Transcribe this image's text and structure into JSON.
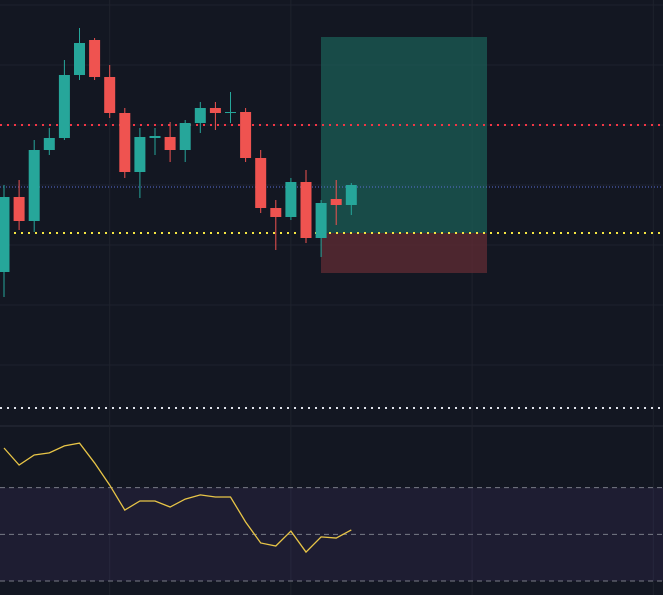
{
  "chart_data": [
    {
      "type": "candlestick",
      "ylim": [
        0,
        425
      ],
      "grid_lines": [
        420,
        360,
        300,
        240,
        180,
        120,
        60
      ],
      "up_color": "#26a69a",
      "down_color": "#ef5350",
      "open": [
        153,
        228,
        204,
        275,
        287,
        350,
        385,
        348,
        312,
        253,
        287,
        288,
        275,
        302,
        317,
        312,
        313,
        267,
        217,
        208,
        243,
        187,
        226,
        220
      ],
      "high": [
        240,
        245,
        285,
        297,
        365,
        397,
        387,
        360,
        317,
        297,
        297,
        303,
        305,
        323,
        323,
        333,
        317,
        275,
        225,
        247,
        255,
        225,
        245,
        242
      ],
      "low": [
        128,
        195,
        193,
        270,
        285,
        345,
        345,
        307,
        247,
        227,
        270,
        263,
        263,
        292,
        295,
        302,
        263,
        212,
        175,
        205,
        182,
        168,
        200,
        210
      ],
      "close": [
        228,
        204,
        275,
        287,
        350,
        382,
        348,
        312,
        253,
        288,
        289,
        275,
        302,
        317,
        312,
        313,
        267,
        217,
        208,
        243,
        187,
        222,
        220,
        240
      ],
      "levels": [
        {
          "value": 300,
          "color": "#f23645"
        },
        {
          "value": 238,
          "color": "#5b6fd6"
        },
        {
          "value": 192,
          "color": "#f5e642"
        },
        {
          "value": 17,
          "color": "#e0e3eb"
        }
      ],
      "position": {
        "target": 388,
        "entry": 192,
        "stop": 152,
        "profit_color": "#1b5e55",
        "loss_color": "#5c2a33"
      }
    },
    {
      "type": "line",
      "ylim": [
        24,
        96
      ],
      "color": "#e8c547",
      "values": [
        87,
        79.7,
        84,
        84.9,
        87.9,
        89.1,
        80.6,
        71.1,
        60.4,
        64.3,
        64.3,
        61.7,
        65.1,
        66.9,
        66,
        66,
        55.3,
        46.3,
        45,
        51.4,
        42.4,
        48.9,
        48.4,
        51.9
      ],
      "bands": [
        70,
        50,
        30
      ],
      "band_fill": "#7e57c2"
    }
  ]
}
